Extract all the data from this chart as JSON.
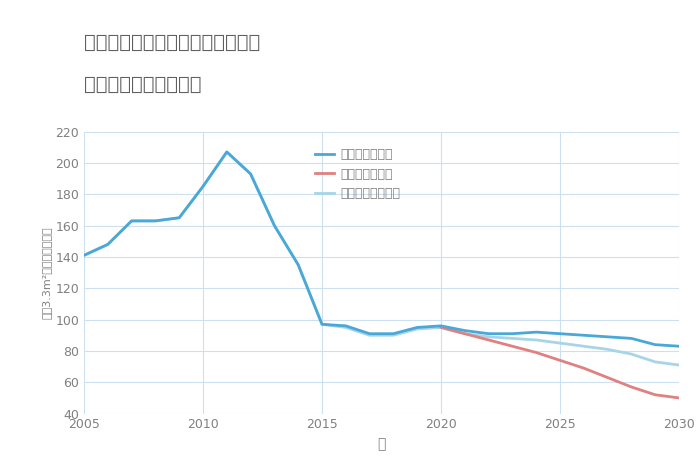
{
  "title_line1": "兵庫県美方郡香美町香住区矢田の",
  "title_line2": "中古戸建ての価格推移",
  "xlabel": "年",
  "ylabel": "坪（3.3m²）単価（万円）",
  "ylim": [
    40,
    220
  ],
  "xlim": [
    2005,
    2030
  ],
  "yticks": [
    40,
    60,
    80,
    100,
    120,
    140,
    160,
    180,
    200,
    220
  ],
  "xticks": [
    2005,
    2010,
    2015,
    2020,
    2025,
    2030
  ],
  "background_color": "#ffffff",
  "grid_color": "#cce0f0",
  "series": {
    "good": {
      "label": "グッドシナリオ",
      "color": "#4aa8d8",
      "linewidth": 2.0,
      "years": [
        2005,
        2006,
        2007,
        2008,
        2009,
        2010,
        2011,
        2012,
        2013,
        2014,
        2015,
        2016,
        2017,
        2018,
        2019,
        2020,
        2021,
        2022,
        2023,
        2024,
        2025,
        2026,
        2027,
        2028,
        2029,
        2030
      ],
      "values": [
        141,
        148,
        163,
        163,
        165,
        185,
        207,
        193,
        160,
        135,
        97,
        96,
        91,
        91,
        95,
        96,
        93,
        91,
        91,
        92,
        91,
        90,
        89,
        88,
        84,
        83
      ]
    },
    "bad": {
      "label": "バッドシナリオ",
      "color": "#e08080",
      "linewidth": 2.0,
      "years": [
        2020,
        2021,
        2022,
        2023,
        2024,
        2025,
        2026,
        2027,
        2028,
        2029,
        2030
      ],
      "values": [
        95,
        91,
        87,
        83,
        79,
        74,
        69,
        63,
        57,
        52,
        50
      ]
    },
    "normal": {
      "label": "ノーマルシナリオ",
      "color": "#a8d4e8",
      "linewidth": 2.0,
      "years": [
        2005,
        2006,
        2007,
        2008,
        2009,
        2010,
        2011,
        2012,
        2013,
        2014,
        2015,
        2016,
        2017,
        2018,
        2019,
        2020,
        2021,
        2022,
        2023,
        2024,
        2025,
        2026,
        2027,
        2028,
        2029,
        2030
      ],
      "values": [
        141,
        148,
        163,
        163,
        165,
        185,
        207,
        193,
        160,
        135,
        97,
        95,
        90,
        90,
        94,
        95,
        91,
        89,
        88,
        87,
        85,
        83,
        81,
        78,
        73,
        71
      ]
    }
  },
  "legend_good_color": "#4aa8d8",
  "legend_bad_color": "#e08080",
  "legend_normal_color": "#a8d4e8",
  "legend_fontsize": 9,
  "title_color": "#606060",
  "title_fontsize": 14,
  "axis_color": "#808080",
  "tick_fontsize": 9
}
